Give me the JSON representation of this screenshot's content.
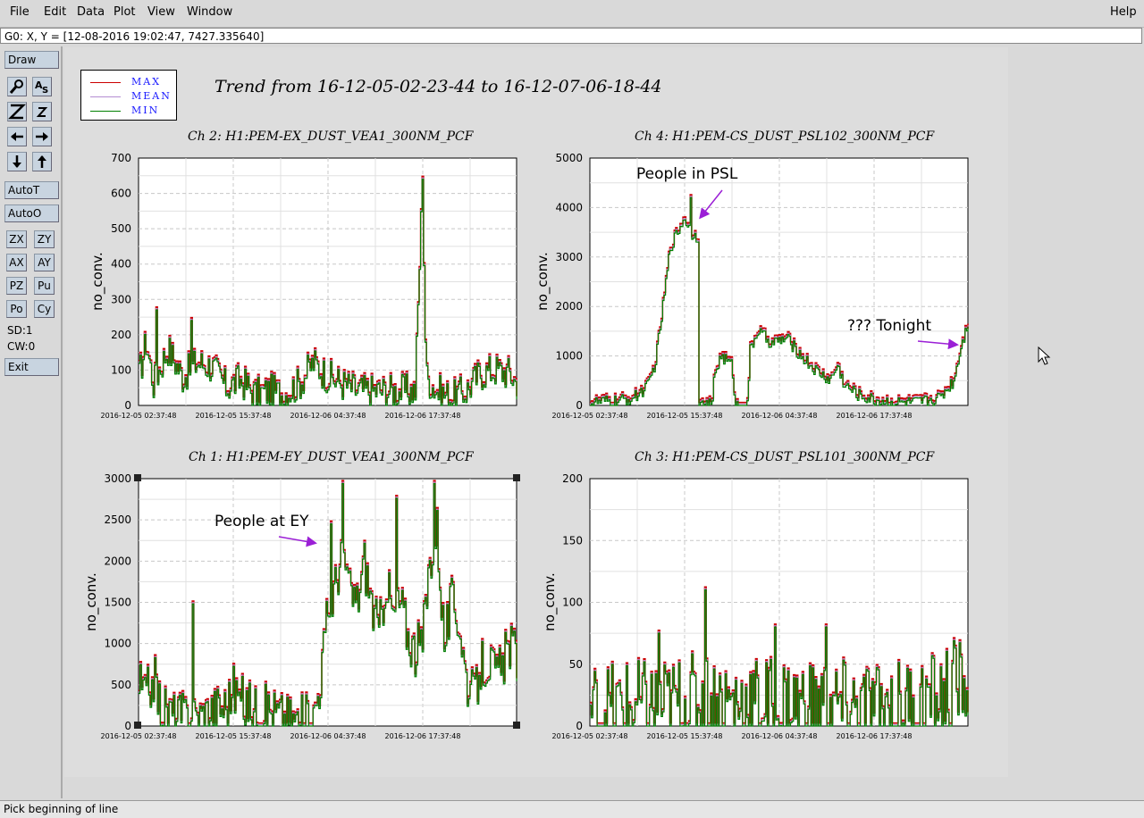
{
  "menu": {
    "file": "File",
    "edit": "Edit",
    "data": "Data",
    "plot": "Plot",
    "view": "View",
    "window": "Window",
    "help": "Help"
  },
  "status_line": "G0: X, Y = [12-08-2016 19:02:47, 7427.335640]",
  "toolbar": {
    "draw": "Draw",
    "autot": "AutoT",
    "autoo": "AutoO",
    "zx": "ZX",
    "zy": "ZY",
    "ax": "AX",
    "ay": "AY",
    "pz": "PZ",
    "pu": "Pu",
    "po": "Po",
    "cy": "Cy",
    "sd": "SD:1",
    "cw": "CW:0",
    "exit": "Exit",
    "icons": [
      "magnify-icon",
      "text-tool-icon",
      "zoom-in-icon",
      "zoom-out-icon",
      "arrow-left-icon",
      "arrow-right-icon",
      "arrow-down-icon",
      "arrow-up-icon"
    ]
  },
  "bottom_status": "Pick beginning of line",
  "legend": {
    "entries": [
      {
        "label": "MAX",
        "color": "#cc0000"
      },
      {
        "label": "MEAN",
        "color": "#b48cd2"
      },
      {
        "label": "MIN",
        "color": "#008000"
      }
    ]
  },
  "trend_title": "Trend from 16-12-05-02-23-44 to 16-12-07-06-18-44",
  "annotations": {
    "psl": "People in PSL",
    "tonight": "??? Tonight",
    "ey": "People at EY"
  },
  "colors": {
    "max": "#cc0000",
    "mean": "#b48cd2",
    "min": "#008000",
    "arrow": "#9b1fd6"
  },
  "chart_data": [
    {
      "type": "line",
      "title": "Ch 2: H1:PEM-EX_DUST_VEA1_300NM_PCF",
      "ylabel": "no_conv.",
      "ylim": [
        0,
        700
      ],
      "yticks": [
        "0",
        "100",
        "200",
        "300",
        "400",
        "500",
        "600",
        "700"
      ],
      "xticks": [
        "2016-12-05 02:37:48",
        "2016-12-05 15:37:48",
        "2016-12-06 04:37:48",
        "2016-12-06 17:37:48"
      ],
      "x_range_hours": [
        0,
        52
      ],
      "profile": [
        [
          0,
          80
        ],
        [
          1,
          180
        ],
        [
          2,
          60
        ],
        [
          4,
          160
        ],
        [
          6,
          80
        ],
        [
          8,
          120
        ],
        [
          10,
          110
        ],
        [
          12,
          50
        ],
        [
          14,
          70
        ],
        [
          16,
          30
        ],
        [
          18,
          40
        ],
        [
          20,
          30
        ],
        [
          22,
          60
        ],
        [
          24,
          120
        ],
        [
          26,
          80
        ],
        [
          28,
          60
        ],
        [
          30,
          40
        ],
        [
          33,
          40
        ],
        [
          38,
          40
        ],
        [
          39,
          640
        ],
        [
          39.5,
          80
        ],
        [
          41,
          40
        ],
        [
          43,
          20
        ],
        [
          45,
          40
        ],
        [
          47,
          90
        ],
        [
          49,
          100
        ],
        [
          51,
          90
        ],
        [
          52,
          60
        ]
      ],
      "noise": 50,
      "spikes": [
        [
          2.4,
          270
        ],
        [
          7.2,
          240
        ],
        [
          39,
          640
        ]
      ]
    },
    {
      "type": "line",
      "title": "Ch 4: H1:PEM-CS_DUST_PSL102_300NM_PCF",
      "ylabel": "no_conv.",
      "ylim": [
        0,
        5000
      ],
      "yticks": [
        "0",
        "1000",
        "2000",
        "3000",
        "4000",
        "5000"
      ],
      "xticks": [
        "2016-12-05 02:37:48",
        "2016-12-05 15:37:48",
        "2016-12-06 04:37:48",
        "2016-12-06 17:37:48"
      ],
      "x_range_hours": [
        0,
        52
      ],
      "profile": [
        [
          0,
          50
        ],
        [
          4,
          80
        ],
        [
          6,
          150
        ],
        [
          8,
          400
        ],
        [
          9,
          900
        ],
        [
          10,
          2000
        ],
        [
          11,
          3200
        ],
        [
          12,
          3500
        ],
        [
          13,
          3800
        ],
        [
          13.8,
          3500
        ],
        [
          14.9,
          3400
        ],
        [
          15,
          0
        ],
        [
          16.8,
          0
        ],
        [
          17,
          600
        ],
        [
          18,
          1000
        ],
        [
          19.5,
          800
        ],
        [
          20,
          0
        ],
        [
          21.6,
          0
        ],
        [
          22,
          1100
        ],
        [
          23,
          1500
        ],
        [
          25,
          1250
        ],
        [
          27,
          1350
        ],
        [
          29,
          1000
        ],
        [
          31,
          700
        ],
        [
          33,
          500
        ],
        [
          34,
          800
        ],
        [
          35,
          400
        ],
        [
          37,
          200
        ],
        [
          39,
          100
        ],
        [
          42,
          50
        ],
        [
          45,
          50
        ],
        [
          48,
          150
        ],
        [
          50,
          500
        ],
        [
          51,
          1200
        ],
        [
          52,
          1700
        ]
      ],
      "noise": 130,
      "spikes": [
        [
          13.8,
          4200
        ]
      ]
    },
    {
      "type": "line",
      "title": "Ch 1: H1:PEM-EY_DUST_VEA1_300NM_PCF",
      "ylabel": "no_conv.",
      "ylim": [
        0,
        3000
      ],
      "yticks": [
        "0",
        "500",
        "1000",
        "1500",
        "2000",
        "2500",
        "3000"
      ],
      "xticks": [
        "2016-12-05 02:37:48",
        "2016-12-05 15:37:48",
        "2016-12-06 04:37:48",
        "2016-12-06 17:37:48"
      ],
      "x_range_hours": [
        0,
        52
      ],
      "profile": [
        [
          0,
          500
        ],
        [
          1,
          350
        ],
        [
          2,
          600
        ],
        [
          3,
          200
        ],
        [
          5,
          120
        ],
        [
          8,
          100
        ],
        [
          10,
          200
        ],
        [
          12,
          250
        ],
        [
          13,
          450
        ],
        [
          14,
          300
        ],
        [
          16,
          200
        ],
        [
          18,
          200
        ],
        [
          20,
          100
        ],
        [
          22,
          50
        ],
        [
          24,
          100
        ],
        [
          25,
          600
        ],
        [
          26,
          1400
        ],
        [
          27,
          1700
        ],
        [
          28,
          2200
        ],
        [
          29,
          1600
        ],
        [
          30,
          1500
        ],
        [
          31,
          2000
        ],
        [
          32,
          1500
        ],
        [
          33,
          1100
        ],
        [
          34,
          1800
        ],
        [
          35,
          1300
        ],
        [
          36,
          1500
        ],
        [
          37,
          1100
        ],
        [
          38,
          900
        ],
        [
          39,
          1000
        ],
        [
          40,
          2000
        ],
        [
          41,
          2400
        ],
        [
          42,
          1000
        ],
        [
          43,
          1500
        ],
        [
          44,
          1300
        ],
        [
          45,
          600
        ],
        [
          46,
          300
        ],
        [
          47,
          700
        ],
        [
          48,
          800
        ],
        [
          49,
          600
        ],
        [
          50,
          700
        ],
        [
          51,
          1000
        ],
        [
          52,
          800
        ]
      ],
      "noise": 320,
      "spikes": [
        [
          7.4,
          1480
        ],
        [
          28,
          2940
        ],
        [
          40.6,
          2940
        ],
        [
          26.5,
          2450
        ],
        [
          35.4,
          2760
        ]
      ]
    },
    {
      "type": "line",
      "title": "Ch 3: H1:PEM-CS_DUST_PSL101_300NM_PCF",
      "ylabel": "no_conv.",
      "ylim": [
        0,
        200
      ],
      "yticks": [
        "0",
        "50",
        "100",
        "150",
        "200"
      ],
      "xticks": [
        "2016-12-05 02:37:48",
        "2016-12-05 15:37:48",
        "2016-12-06 04:37:48",
        "2016-12-06 17:37:48"
      ],
      "x_range_hours": [
        0,
        52
      ],
      "profile": [
        [
          0,
          12
        ],
        [
          10,
          15
        ],
        [
          15,
          20
        ],
        [
          20,
          18
        ],
        [
          30,
          15
        ],
        [
          40,
          12
        ],
        [
          48,
          20
        ],
        [
          52,
          40
        ]
      ],
      "noise": 40,
      "spikes": [
        [
          15.8,
          110
        ],
        [
          25.5,
          80
        ],
        [
          32.5,
          80
        ],
        [
          9.5,
          75
        ]
      ]
    }
  ]
}
